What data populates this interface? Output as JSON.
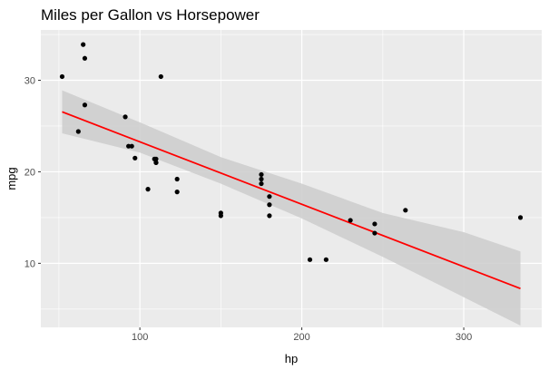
{
  "chart_data": {
    "type": "scatter",
    "title": "Miles per Gallon vs Horsepower",
    "xlabel": "hp",
    "ylabel": "mpg",
    "xlim": [
      38.85,
      348.15
    ],
    "ylim": [
      3.0,
      35.5
    ],
    "x_ticks": [
      100,
      200,
      300
    ],
    "y_ticks": [
      10,
      20,
      30
    ],
    "grid": true,
    "background": "#ebebeb",
    "grid_color": "#ffffff",
    "point_color": "#000000",
    "fit_line_color": "#ff0000",
    "confidence_band_color": "#cccccc",
    "points": [
      {
        "x": 110,
        "y": 21.0
      },
      {
        "x": 110,
        "y": 21.0
      },
      {
        "x": 93,
        "y": 22.8
      },
      {
        "x": 110,
        "y": 21.4
      },
      {
        "x": 175,
        "y": 18.7
      },
      {
        "x": 105,
        "y": 18.1
      },
      {
        "x": 245,
        "y": 14.3
      },
      {
        "x": 62,
        "y": 24.4
      },
      {
        "x": 95,
        "y": 22.8
      },
      {
        "x": 123,
        "y": 19.2
      },
      {
        "x": 123,
        "y": 17.8
      },
      {
        "x": 180,
        "y": 16.4
      },
      {
        "x": 180,
        "y": 17.3
      },
      {
        "x": 180,
        "y": 15.2
      },
      {
        "x": 205,
        "y": 10.4
      },
      {
        "x": 215,
        "y": 10.4
      },
      {
        "x": 230,
        "y": 14.7
      },
      {
        "x": 66,
        "y": 32.4
      },
      {
        "x": 52,
        "y": 30.4
      },
      {
        "x": 65,
        "y": 33.9
      },
      {
        "x": 97,
        "y": 21.5
      },
      {
        "x": 150,
        "y": 15.5
      },
      {
        "x": 150,
        "y": 15.2
      },
      {
        "x": 245,
        "y": 13.3
      },
      {
        "x": 175,
        "y": 19.2
      },
      {
        "x": 66,
        "y": 27.3
      },
      {
        "x": 91,
        "y": 26.0
      },
      {
        "x": 113,
        "y": 30.4
      },
      {
        "x": 264,
        "y": 15.8
      },
      {
        "x": 175,
        "y": 19.7
      },
      {
        "x": 335,
        "y": 15.0
      },
      {
        "x": 109,
        "y": 21.4
      }
    ],
    "fit_line": {
      "x": [
        52,
        335
      ],
      "y": [
        26.55,
        7.24
      ]
    },
    "confidence_band": {
      "x": [
        52,
        100,
        150,
        200,
        250,
        300,
        335
      ],
      "lower": [
        24.2,
        22.1,
        18.7,
        14.9,
        10.7,
        6.3,
        3.2
      ],
      "upper": [
        28.9,
        25.4,
        21.6,
        18.7,
        15.5,
        13.4,
        11.3
      ]
    }
  }
}
